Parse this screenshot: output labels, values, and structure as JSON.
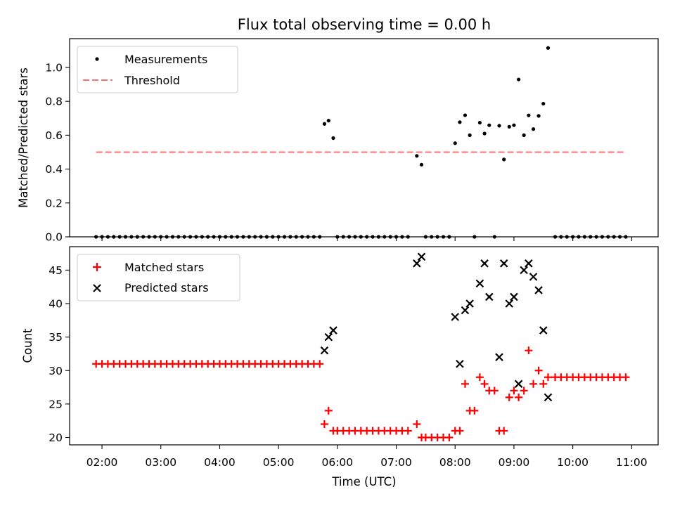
{
  "chart_data": {
    "title": "Flux total observing time = 0.00 h",
    "xlabel": "Time (UTC)",
    "x_ticks": [
      "02:00",
      "03:00",
      "04:00",
      "05:00",
      "06:00",
      "07:00",
      "08:00",
      "09:00",
      "10:00",
      "11:00"
    ],
    "x_range_hours": [
      1.45,
      11.45
    ],
    "panels": [
      {
        "type": "scatter",
        "ylabel": "Matched/Predicted stars",
        "ylim": [
          0,
          1.17
        ],
        "y_ticks": [
          0.0,
          0.2,
          0.4,
          0.6,
          0.8,
          1.0
        ],
        "y_tick_labels": [
          "0.0",
          "0.2",
          "0.4",
          "0.6",
          "0.8",
          "1.0"
        ],
        "legend_position": "upper-left",
        "series": [
          {
            "name": "Measurements",
            "marker": "dot",
            "color": "#000000",
            "points": [
              [
                1.9,
                0
              ],
              [
                2.0,
                0
              ],
              [
                2.1,
                0
              ],
              [
                2.2,
                0
              ],
              [
                2.3,
                0
              ],
              [
                2.4,
                0
              ],
              [
                2.5,
                0
              ],
              [
                2.6,
                0
              ],
              [
                2.7,
                0
              ],
              [
                2.8,
                0
              ],
              [
                2.9,
                0
              ],
              [
                3.0,
                0
              ],
              [
                3.1,
                0
              ],
              [
                3.2,
                0
              ],
              [
                3.3,
                0
              ],
              [
                3.4,
                0
              ],
              [
                3.5,
                0
              ],
              [
                3.6,
                0
              ],
              [
                3.7,
                0
              ],
              [
                3.8,
                0
              ],
              [
                3.9,
                0
              ],
              [
                4.0,
                0
              ],
              [
                4.1,
                0
              ],
              [
                4.2,
                0
              ],
              [
                4.3,
                0
              ],
              [
                4.4,
                0
              ],
              [
                4.5,
                0
              ],
              [
                4.6,
                0
              ],
              [
                4.7,
                0
              ],
              [
                4.8,
                0
              ],
              [
                4.9,
                0
              ],
              [
                5.0,
                0
              ],
              [
                5.1,
                0
              ],
              [
                5.2,
                0
              ],
              [
                5.3,
                0
              ],
              [
                5.4,
                0
              ],
              [
                5.5,
                0
              ],
              [
                5.6,
                0
              ],
              [
                5.7,
                0
              ],
              [
                5.78,
                0.667
              ],
              [
                5.85,
                0.686
              ],
              [
                5.93,
                0.583
              ],
              [
                6.0,
                0
              ],
              [
                6.1,
                0
              ],
              [
                6.2,
                0
              ],
              [
                6.3,
                0
              ],
              [
                6.4,
                0
              ],
              [
                6.5,
                0
              ],
              [
                6.6,
                0
              ],
              [
                6.7,
                0
              ],
              [
                6.8,
                0
              ],
              [
                6.9,
                0
              ],
              [
                7.0,
                0
              ],
              [
                7.1,
                0
              ],
              [
                7.2,
                0
              ],
              [
                7.35,
                0.478
              ],
              [
                7.43,
                0.426
              ],
              [
                7.5,
                0
              ],
              [
                7.6,
                0
              ],
              [
                7.7,
                0
              ],
              [
                7.8,
                0
              ],
              [
                7.9,
                0
              ],
              [
                8.0,
                0.553
              ],
              [
                8.08,
                0.677
              ],
              [
                8.17,
                0.718
              ],
              [
                8.25,
                0.6
              ],
              [
                8.33,
                0
              ],
              [
                8.42,
                0.674
              ],
              [
                8.5,
                0.61
              ],
              [
                8.58,
                0.659
              ],
              [
                8.67,
                0
              ],
              [
                8.75,
                0.656
              ],
              [
                8.83,
                0.457
              ],
              [
                8.92,
                0.65
              ],
              [
                9.0,
                0.659
              ],
              [
                9.08,
                0.929
              ],
              [
                9.17,
                0.6
              ],
              [
                9.25,
                0.717
              ],
              [
                9.33,
                0.636
              ],
              [
                9.42,
                0.714
              ],
              [
                9.5,
                0.786
              ],
              [
                9.58,
                1.115
              ],
              [
                9.7,
                0
              ],
              [
                9.8,
                0
              ],
              [
                9.9,
                0
              ],
              [
                10.0,
                0
              ],
              [
                10.1,
                0
              ],
              [
                10.2,
                0
              ],
              [
                10.3,
                0
              ],
              [
                10.4,
                0
              ],
              [
                10.5,
                0
              ],
              [
                10.6,
                0
              ],
              [
                10.7,
                0
              ],
              [
                10.8,
                0
              ],
              [
                10.9,
                0
              ]
            ]
          },
          {
            "name": "Threshold",
            "marker": "dashed-line",
            "color": "#ff7070",
            "points": [
              [
                1.9,
                0.5
              ],
              [
                10.9,
                0.5
              ]
            ]
          }
        ]
      },
      {
        "type": "scatter",
        "ylabel": "Count",
        "ylim": [
          18.9,
          48.5
        ],
        "y_ticks": [
          20,
          25,
          30,
          35,
          40,
          45
        ],
        "y_tick_labels": [
          "20",
          "25",
          "30",
          "35",
          "40",
          "45"
        ],
        "legend_position": "upper-left",
        "series": [
          {
            "name": "Matched stars",
            "marker": "plus",
            "color": "#ff0000",
            "points": [
              [
                1.9,
                31
              ],
              [
                2.0,
                31
              ],
              [
                2.1,
                31
              ],
              [
                2.2,
                31
              ],
              [
                2.3,
                31
              ],
              [
                2.4,
                31
              ],
              [
                2.5,
                31
              ],
              [
                2.6,
                31
              ],
              [
                2.7,
                31
              ],
              [
                2.8,
                31
              ],
              [
                2.9,
                31
              ],
              [
                3.0,
                31
              ],
              [
                3.1,
                31
              ],
              [
                3.2,
                31
              ],
              [
                3.3,
                31
              ],
              [
                3.4,
                31
              ],
              [
                3.5,
                31
              ],
              [
                3.6,
                31
              ],
              [
                3.7,
                31
              ],
              [
                3.8,
                31
              ],
              [
                3.9,
                31
              ],
              [
                4.0,
                31
              ],
              [
                4.1,
                31
              ],
              [
                4.2,
                31
              ],
              [
                4.3,
                31
              ],
              [
                4.4,
                31
              ],
              [
                4.5,
                31
              ],
              [
                4.6,
                31
              ],
              [
                4.7,
                31
              ],
              [
                4.8,
                31
              ],
              [
                4.9,
                31
              ],
              [
                5.0,
                31
              ],
              [
                5.1,
                31
              ],
              [
                5.2,
                31
              ],
              [
                5.3,
                31
              ],
              [
                5.4,
                31
              ],
              [
                5.5,
                31
              ],
              [
                5.6,
                31
              ],
              [
                5.7,
                31
              ],
              [
                5.78,
                22
              ],
              [
                5.85,
                24
              ],
              [
                5.93,
                21
              ],
              [
                6.0,
                21
              ],
              [
                6.1,
                21
              ],
              [
                6.2,
                21
              ],
              [
                6.3,
                21
              ],
              [
                6.4,
                21
              ],
              [
                6.5,
                21
              ],
              [
                6.6,
                21
              ],
              [
                6.7,
                21
              ],
              [
                6.8,
                21
              ],
              [
                6.9,
                21
              ],
              [
                7.0,
                21
              ],
              [
                7.1,
                21
              ],
              [
                7.2,
                21
              ],
              [
                7.35,
                22
              ],
              [
                7.43,
                20
              ],
              [
                7.5,
                20
              ],
              [
                7.6,
                20
              ],
              [
                7.7,
                20
              ],
              [
                7.8,
                20
              ],
              [
                7.9,
                20
              ],
              [
                8.0,
                21
              ],
              [
                8.08,
                21
              ],
              [
                8.17,
                28
              ],
              [
                8.25,
                24
              ],
              [
                8.33,
                24
              ],
              [
                8.42,
                29
              ],
              [
                8.5,
                28
              ],
              [
                8.58,
                27
              ],
              [
                8.67,
                27
              ],
              [
                8.75,
                21
              ],
              [
                8.83,
                21
              ],
              [
                8.92,
                26
              ],
              [
                9.0,
                27
              ],
              [
                9.08,
                26
              ],
              [
                9.17,
                27
              ],
              [
                9.25,
                33
              ],
              [
                9.33,
                28
              ],
              [
                9.42,
                30
              ],
              [
                9.5,
                28
              ],
              [
                9.58,
                29
              ],
              [
                9.7,
                29
              ],
              [
                9.8,
                29
              ],
              [
                9.9,
                29
              ],
              [
                10.0,
                29
              ],
              [
                10.1,
                29
              ],
              [
                10.2,
                29
              ],
              [
                10.3,
                29
              ],
              [
                10.4,
                29
              ],
              [
                10.5,
                29
              ],
              [
                10.6,
                29
              ],
              [
                10.7,
                29
              ],
              [
                10.8,
                29
              ],
              [
                10.9,
                29
              ]
            ]
          },
          {
            "name": "Predicted stars",
            "marker": "x",
            "color": "#000000",
            "points": [
              [
                5.78,
                33
              ],
              [
                5.85,
                35
              ],
              [
                5.93,
                36
              ],
              [
                7.35,
                46
              ],
              [
                7.43,
                47
              ],
              [
                8.0,
                38
              ],
              [
                8.08,
                31
              ],
              [
                8.17,
                39
              ],
              [
                8.25,
                40
              ],
              [
                8.42,
                43
              ],
              [
                8.5,
                46
              ],
              [
                8.58,
                41
              ],
              [
                8.75,
                32
              ],
              [
                8.83,
                46
              ],
              [
                8.92,
                40
              ],
              [
                9.0,
                41
              ],
              [
                9.08,
                28
              ],
              [
                9.17,
                45
              ],
              [
                9.25,
                46
              ],
              [
                9.33,
                44
              ],
              [
                9.42,
                42
              ],
              [
                9.5,
                36
              ],
              [
                9.58,
                26
              ]
            ]
          }
        ]
      }
    ]
  }
}
